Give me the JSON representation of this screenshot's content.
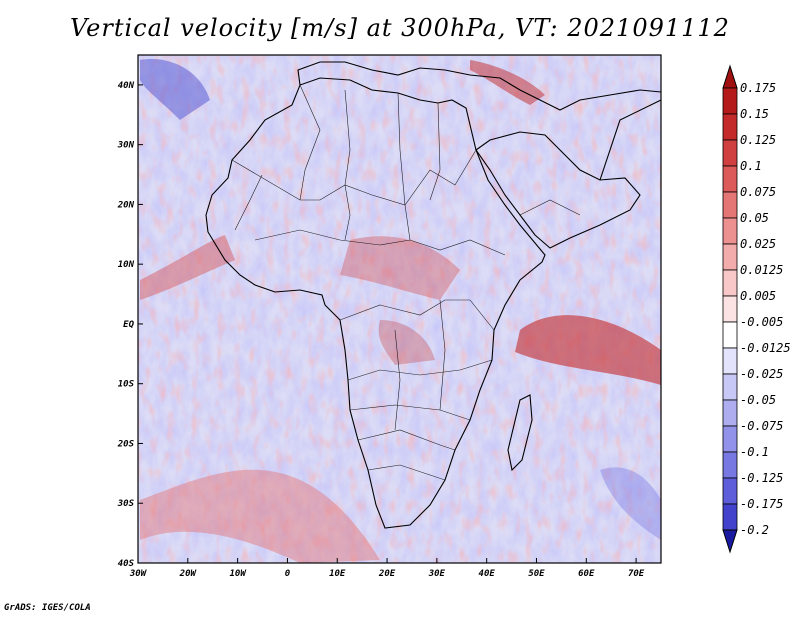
{
  "title": "Vertical velocity [m/s] at 300hPa, VT: 2021091112",
  "credit": "GrADS: IGES/COLA",
  "map": {
    "lon_range": [
      -30,
      75
    ],
    "lat_range": [
      -40,
      45
    ],
    "x_ticks": [
      {
        "lon": -30,
        "label": "30W"
      },
      {
        "lon": -20,
        "label": "20W"
      },
      {
        "lon": -10,
        "label": "10W"
      },
      {
        "lon": 0,
        "label": "0"
      },
      {
        "lon": 10,
        "label": "10E"
      },
      {
        "lon": 20,
        "label": "20E"
      },
      {
        "lon": 30,
        "label": "30E"
      },
      {
        "lon": 40,
        "label": "40E"
      },
      {
        "lon": 50,
        "label": "50E"
      },
      {
        "lon": 60,
        "label": "60E"
      },
      {
        "lon": 70,
        "label": "70E"
      }
    ],
    "y_ticks": [
      {
        "lat": 40,
        "label": "40N"
      },
      {
        "lat": 30,
        "label": "30N"
      },
      {
        "lat": 20,
        "label": "20N"
      },
      {
        "lat": 10,
        "label": "10N"
      },
      {
        "lat": 0,
        "label": "EQ"
      },
      {
        "lat": -10,
        "label": "10S"
      },
      {
        "lat": -20,
        "label": "20S"
      },
      {
        "lat": -30,
        "label": "30S"
      },
      {
        "lat": -40,
        "label": "40S"
      }
    ]
  },
  "colorbar": {
    "levels": [
      {
        "label": "0.175",
        "color": "#b51a1a"
      },
      {
        "label": "0.15",
        "color": "#c42a2a"
      },
      {
        "label": "0.125",
        "color": "#d04040"
      },
      {
        "label": "0.1",
        "color": "#dc5a5a"
      },
      {
        "label": "0.075",
        "color": "#e57676"
      },
      {
        "label": "0.05",
        "color": "#ed9090"
      },
      {
        "label": "0.025",
        "color": "#f3acac"
      },
      {
        "label": "0.0125",
        "color": "#f8c8c8"
      },
      {
        "label": "0.005",
        "color": "#fce3e3"
      },
      {
        "label": "-0.005",
        "color": "#ffffff"
      },
      {
        "label": "-0.0125",
        "color": "#e3e3fb"
      },
      {
        "label": "-0.025",
        "color": "#c8c8f6"
      },
      {
        "label": "-0.05",
        "color": "#adadf0"
      },
      {
        "label": "-0.075",
        "color": "#9292ea"
      },
      {
        "label": "-0.1",
        "color": "#7878e3"
      },
      {
        "label": "-0.125",
        "color": "#5e5edb"
      },
      {
        "label": "-0.175",
        "color": "#4242cc"
      },
      {
        "label": "-0.2",
        "color": "#2a2ab8"
      }
    ],
    "top_color": "#a01010",
    "bottom_color": "#1a1aa0"
  }
}
